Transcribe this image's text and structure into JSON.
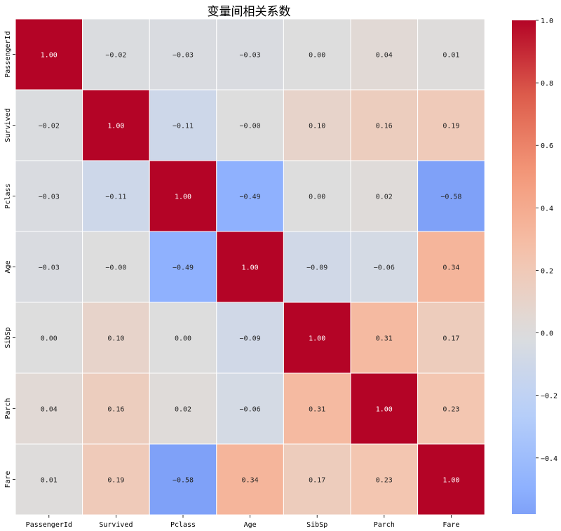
{
  "chart_data": {
    "type": "heatmap",
    "title": "变量间相关系数",
    "row_labels": [
      "PassengerId",
      "Survived",
      "Pclass",
      "Age",
      "SibSp",
      "Parch",
      "Fare"
    ],
    "col_labels": [
      "PassengerId",
      "Survived",
      "Pclass",
      "Age",
      "SibSp",
      "Parch",
      "Fare"
    ],
    "values": [
      [
        1.0,
        -0.02,
        -0.03,
        -0.03,
        0.0,
        0.04,
        0.01
      ],
      [
        -0.02,
        1.0,
        -0.11,
        -0.0,
        0.1,
        0.16,
        0.19
      ],
      [
        -0.03,
        -0.11,
        1.0,
        -0.49,
        0.0,
        0.02,
        -0.58
      ],
      [
        -0.03,
        -0.0,
        -0.49,
        1.0,
        -0.09,
        -0.06,
        0.34
      ],
      [
        0.0,
        0.1,
        0.0,
        -0.09,
        1.0,
        0.31,
        0.17
      ],
      [
        0.04,
        0.16,
        0.02,
        -0.06,
        0.31,
        1.0,
        0.23
      ],
      [
        0.01,
        0.19,
        -0.58,
        0.34,
        0.17,
        0.23,
        1.0
      ]
    ],
    "value_labels": [
      [
        "1.00",
        "−0.02",
        "−0.03",
        "−0.03",
        "0.00",
        "0.04",
        "0.01"
      ],
      [
        "−0.02",
        "1.00",
        "−0.11",
        "−0.00",
        "0.10",
        "0.16",
        "0.19"
      ],
      [
        "−0.03",
        "−0.11",
        "1.00",
        "−0.49",
        "0.00",
        "0.02",
        "−0.58"
      ],
      [
        "−0.03",
        "−0.00",
        "−0.49",
        "1.00",
        "−0.09",
        "−0.06",
        "0.34"
      ],
      [
        "0.00",
        "0.10",
        "0.00",
        "−0.09",
        "1.00",
        "0.31",
        "0.17"
      ],
      [
        "0.04",
        "0.16",
        "0.02",
        "−0.06",
        "0.31",
        "1.00",
        "0.23"
      ],
      [
        "0.01",
        "0.19",
        "−0.58",
        "0.34",
        "0.17",
        "0.23",
        "1.00"
      ]
    ],
    "colormap": "coolwarm",
    "center": 0,
    "colorbar": {
      "range": [
        -0.58,
        1.0
      ],
      "ticks": [
        1.0,
        0.8,
        0.6,
        0.4,
        0.2,
        0.0,
        -0.2,
        -0.4
      ],
      "tick_labels": [
        "1.0",
        "0.8",
        "0.6",
        "0.4",
        "0.2",
        "0.0",
        "−0.2",
        "−0.4"
      ]
    },
    "grid_lines": "white",
    "xlabel": "",
    "ylabel": ""
  }
}
